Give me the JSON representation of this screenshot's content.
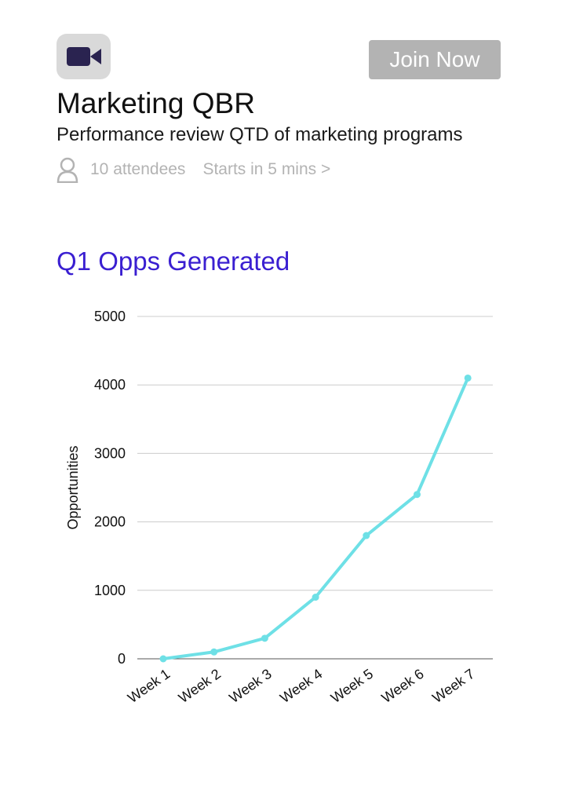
{
  "header": {
    "video_icon": "video-camera-icon",
    "join_label": "Join Now",
    "title": "Marketing QBR",
    "subtitle": "Performance review QTD of marketing programs",
    "person_icon": "person-icon",
    "attendees": "10 attendees",
    "starts": "Starts in 5 mins >"
  },
  "colors": {
    "accent": "#3a1fd1",
    "icon_dark": "#2a2350",
    "button_bg": "#b3b3b3",
    "muted_text": "#b3b3b3",
    "line": "#6ee0e6",
    "grid": "#cccccc"
  },
  "chart_data": {
    "type": "line",
    "title": "Q1 Opps Generated",
    "xlabel": "",
    "ylabel": "Opportunities",
    "categories": [
      "Week 1",
      "Week 2",
      "Week 3",
      "Week 4",
      "Week 5",
      "Week 6",
      "Week 7"
    ],
    "series": [
      {
        "values": [
          0,
          100,
          300,
          900,
          1800,
          2400,
          4100
        ]
      }
    ],
    "ylim": [
      0,
      5000
    ],
    "yticks": [
      0,
      1000,
      2000,
      3000,
      4000,
      5000
    ],
    "grid": true,
    "legend": "none"
  }
}
